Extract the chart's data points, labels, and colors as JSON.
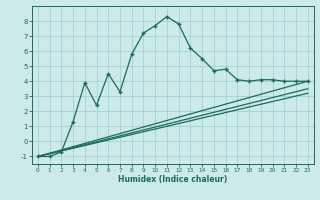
{
  "xlabel": "Humidex (Indice chaleur)",
  "ylabel": "",
  "background_color": "#cceaea",
  "grid_color": "#aad4d4",
  "line_color": "#1a6b5a",
  "xlim": [
    -0.5,
    23.5
  ],
  "ylim": [
    -1.5,
    9.0
  ],
  "yticks": [
    -1,
    0,
    1,
    2,
    3,
    4,
    5,
    6,
    7,
    8
  ],
  "xticks": [
    0,
    1,
    2,
    3,
    4,
    5,
    6,
    7,
    8,
    9,
    10,
    11,
    12,
    13,
    14,
    15,
    16,
    17,
    18,
    19,
    20,
    21,
    22,
    23
  ],
  "series1_x": [
    0,
    1,
    2,
    3,
    4,
    5,
    6,
    7,
    8,
    9,
    10,
    11,
    12,
    13,
    14,
    15,
    16,
    17,
    18,
    19,
    20,
    21,
    22,
    23
  ],
  "series1_y": [
    -1.0,
    -1.0,
    -0.7,
    1.3,
    3.9,
    2.4,
    4.5,
    3.3,
    5.8,
    7.2,
    7.7,
    8.3,
    7.8,
    6.2,
    5.5,
    4.7,
    4.8,
    4.1,
    4.0,
    4.1,
    4.1,
    4.0,
    4.0,
    4.0
  ],
  "series2_x": [
    0,
    23
  ],
  "series2_y": [
    -1.0,
    4.0
  ],
  "series3_x": [
    0,
    23
  ],
  "series3_y": [
    -1.0,
    3.5
  ],
  "series4_x": [
    0,
    23
  ],
  "series4_y": [
    -1.0,
    3.2
  ]
}
